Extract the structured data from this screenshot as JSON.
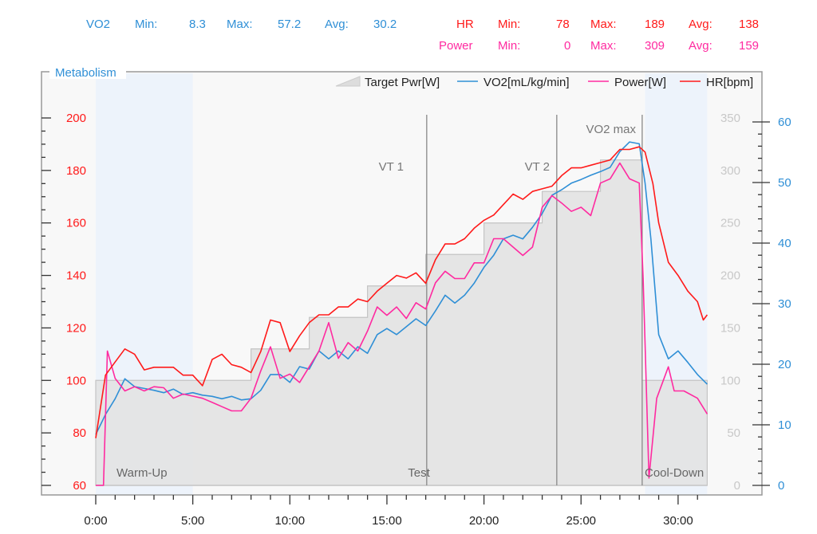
{
  "stats": {
    "vo2": {
      "label": "VO2",
      "min_label": "Min:",
      "min": "8.3",
      "max_label": "Max:",
      "max": "57.2",
      "avg_label": "Avg:",
      "avg": "30.2",
      "color": "#2f8fd6"
    },
    "hr": {
      "label": "HR",
      "min_label": "Min:",
      "min": "78",
      "max_label": "Max:",
      "max": "189",
      "avg_label": "Avg:",
      "avg": "138",
      "color": "#ff1a1a"
    },
    "power": {
      "label": "Power",
      "min_label": "Min:",
      "min": "0",
      "max_label": "Max:",
      "max": "309",
      "avg_label": "Avg:",
      "avg": "159",
      "color": "#ff2aa0"
    }
  },
  "chart_data": {
    "type": "line",
    "title": "Metabolism",
    "legend_placement": "top-right",
    "grid": false,
    "x_axis": {
      "unit": "minutes",
      "range": [
        0,
        31.5
      ],
      "ticks": [
        "0:00",
        "5:00",
        "10:00",
        "15:00",
        "20:00",
        "25:00",
        "30:00"
      ],
      "tick_values": [
        0,
        5,
        10,
        15,
        20,
        25,
        30
      ]
    },
    "y_axis_left": {
      "series": "HR[bpm]",
      "range": [
        60,
        200
      ],
      "ticks": [
        60,
        80,
        100,
        120,
        140,
        160,
        180,
        200
      ],
      "color": "#ff1a1a"
    },
    "y_axis_right_inner": {
      "series": "Power",
      "range": [
        0,
        350
      ],
      "ticks": [
        0,
        50,
        100,
        150,
        200,
        250,
        300,
        350
      ],
      "color": "#c8c8c8"
    },
    "y_axis_right_outer": {
      "series": "VO2[mL/kg/min]",
      "range": [
        0,
        60
      ],
      "ticks": [
        0,
        10,
        20,
        30,
        40,
        50,
        60
      ],
      "color": "#2f8fd6"
    },
    "phases": [
      {
        "label": "Warm-Up",
        "start": 0,
        "end": 5,
        "shaded": true
      },
      {
        "label": "Test",
        "start": 5,
        "end": 28.15,
        "shaded": false
      },
      {
        "label": "Cool-Down",
        "start": 28.3,
        "end": 31.5,
        "shaded": true
      }
    ],
    "markers": [
      {
        "label": "VT 1",
        "x": 17.05
      },
      {
        "label": "VT 2",
        "x": 23.75
      },
      {
        "label": "VO2 max",
        "x": 28.15
      }
    ],
    "target_power": {
      "name": "Target Pwr[W]",
      "steps": [
        [
          0,
          100
        ],
        [
          8,
          130
        ],
        [
          11,
          160
        ],
        [
          14,
          190
        ],
        [
          17,
          220
        ],
        [
          20,
          250
        ],
        [
          23,
          280
        ],
        [
          26,
          310
        ],
        [
          28.15,
          100
        ],
        [
          31.5,
          100
        ]
      ]
    },
    "series": [
      {
        "name": "VO2[mL/kg/min]",
        "axis": "right_outer",
        "color": "#2f8fd6",
        "x": [
          0,
          0.5,
          1,
          1.5,
          2,
          2.5,
          3,
          3.5,
          4,
          4.5,
          5,
          5.5,
          6,
          6.5,
          7,
          7.5,
          8,
          8.5,
          9,
          9.5,
          10,
          10.5,
          11,
          11.5,
          12,
          12.5,
          13,
          13.5,
          14,
          14.5,
          15,
          15.5,
          16,
          16.5,
          17,
          17.5,
          18,
          18.5,
          19,
          19.5,
          20,
          20.5,
          21,
          21.5,
          22,
          22.5,
          23,
          23.5,
          24,
          24.5,
          25,
          25.5,
          26,
          26.5,
          27,
          27.5,
          28,
          28.3,
          28.6,
          29,
          29.5,
          30,
          30.5,
          31,
          31.5
        ],
        "y": [
          8.4,
          11.7,
          14.3,
          17.6,
          16.3,
          16,
          15.7,
          15.3,
          15.9,
          15,
          15.3,
          14.9,
          14.7,
          14.3,
          14.7,
          14.1,
          14.3,
          15.7,
          18.3,
          18.3,
          17,
          19.6,
          19.2,
          22.2,
          20.9,
          22.2,
          20.9,
          22.9,
          21.8,
          24.9,
          25.9,
          24.9,
          26.2,
          27.5,
          26.4,
          28.8,
          31.4,
          30.1,
          31.4,
          33.4,
          36,
          38,
          40.7,
          41.3,
          40.7,
          42.6,
          44.9,
          47.9,
          48.8,
          49.9,
          50.5,
          51.2,
          51.8,
          52.5,
          55.1,
          56.7,
          56.4,
          49.9,
          40.7,
          24.9,
          20.9,
          22.2,
          20.3,
          18.3,
          16.7
        ]
      },
      {
        "name": "Power[W]",
        "axis": "right_inner",
        "color": "#ff2aa0",
        "x": [
          0,
          0.4,
          0.6,
          1,
          1.5,
          2,
          2.5,
          3,
          3.5,
          4,
          4.5,
          5,
          5.5,
          6,
          6.5,
          7,
          7.5,
          8,
          8.5,
          9,
          9.5,
          10,
          10.5,
          11,
          11.5,
          12,
          12.5,
          13,
          13.5,
          14,
          14.5,
          15,
          15.5,
          16,
          16.5,
          17,
          17.5,
          18,
          18.5,
          19,
          19.5,
          20,
          20.5,
          21,
          21.5,
          22,
          22.5,
          23,
          23.5,
          24,
          24.5,
          25,
          25.5,
          26,
          26.5,
          27,
          27.5,
          28,
          28.2,
          28.5,
          28.9,
          29.5,
          29.8,
          30.3,
          31,
          31.5
        ],
        "y": [
          0,
          0,
          128,
          102,
          90,
          94,
          90,
          94,
          93,
          83,
          87,
          85,
          83,
          79,
          75,
          71,
          71,
          83,
          109,
          132,
          102,
          106,
          98,
          113,
          128,
          155,
          121,
          136,
          128,
          147,
          170,
          162,
          170,
          159,
          174,
          168,
          193,
          204,
          197,
          197,
          212,
          212,
          235,
          235,
          227,
          219,
          227,
          265,
          276,
          269,
          261,
          265,
          257,
          288,
          292,
          307,
          292,
          288,
          197,
          7,
          83,
          113,
          90,
          90,
          83,
          68
        ]
      },
      {
        "name": "HR[bpm]",
        "axis": "left",
        "color": "#ff1a1a",
        "x": [
          0,
          0.5,
          1,
          1.5,
          2,
          2.5,
          3,
          3.5,
          4,
          4.5,
          5,
          5.5,
          6,
          6.5,
          7,
          7.5,
          8,
          8.5,
          9,
          9.5,
          10,
          10.5,
          11,
          11.5,
          12,
          12.5,
          13,
          13.5,
          14,
          14.5,
          15,
          15.5,
          16,
          16.5,
          17,
          17.5,
          18,
          18.5,
          19,
          19.5,
          20,
          20.5,
          21,
          21.5,
          22,
          22.5,
          23,
          23.5,
          24,
          24.5,
          25,
          25.5,
          26,
          26.5,
          27,
          27.5,
          28,
          28.3,
          28.7,
          29,
          29.5,
          30,
          30.5,
          31,
          31.3,
          31.5
        ],
        "y": [
          78,
          102,
          107,
          112,
          110,
          104,
          105,
          105,
          105,
          102,
          102,
          98,
          108,
          110,
          106,
          105,
          103,
          111,
          123,
          122,
          111,
          117,
          122,
          125,
          125,
          128,
          128,
          131,
          130,
          134,
          137,
          140,
          139,
          141,
          137,
          146,
          152,
          152,
          154,
          158,
          161,
          163,
          167,
          171,
          169,
          172,
          173,
          174,
          178,
          181,
          181,
          182,
          183,
          184,
          188,
          188,
          189,
          187,
          175,
          160,
          145,
          140,
          134,
          130,
          123,
          125
        ]
      }
    ]
  }
}
